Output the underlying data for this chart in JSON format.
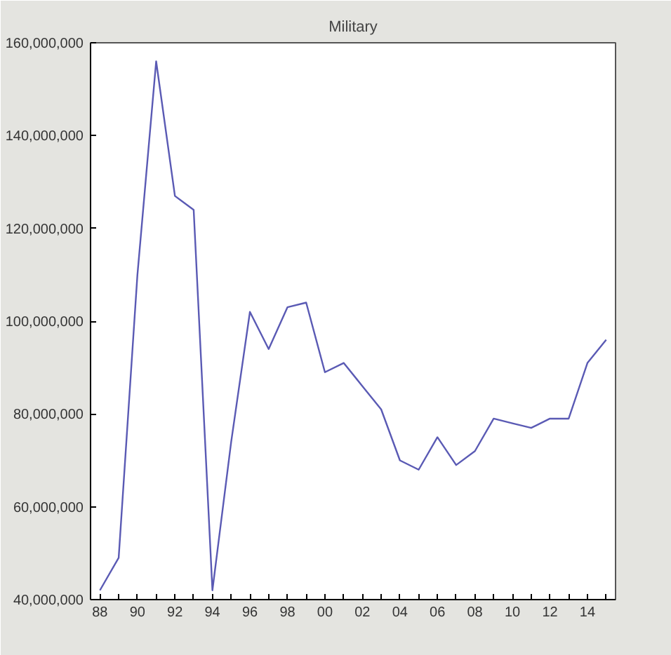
{
  "chart_data": {
    "type": "line",
    "title": "Military",
    "x": [
      1988,
      1989,
      1990,
      1991,
      1992,
      1993,
      1994,
      1995,
      1996,
      1997,
      1998,
      1999,
      2000,
      2001,
      2002,
      2003,
      2004,
      2005,
      2006,
      2007,
      2008,
      2009,
      2010,
      2011,
      2012,
      2013,
      2014,
      2015
    ],
    "series": [
      {
        "color": "#5a5ab4",
        "values": [
          42000000,
          49000000,
          110000000,
          156000000,
          127000000,
          124000000,
          42000000,
          74000000,
          102000000,
          94000000,
          103000000,
          104000000,
          89000000,
          91000000,
          86000000,
          81000000,
          70000000,
          68000000,
          75000000,
          69000000,
          72000000,
          79000000,
          78000000,
          77000000,
          79000000,
          79000000,
          91000000,
          96000000
        ]
      }
    ],
    "xlim": [
      1987.5,
      2015.5
    ],
    "xticks": [
      {
        "value": 1988,
        "label": "88"
      },
      {
        "value": 1989,
        "label": null
      },
      {
        "value": 1990,
        "label": "90"
      },
      {
        "value": 1991,
        "label": null
      },
      {
        "value": 1992,
        "label": "92"
      },
      {
        "value": 1993,
        "label": null
      },
      {
        "value": 1994,
        "label": "94"
      },
      {
        "value": 1995,
        "label": null
      },
      {
        "value": 1996,
        "label": "96"
      },
      {
        "value": 1997,
        "label": null
      },
      {
        "value": 1998,
        "label": "98"
      },
      {
        "value": 1999,
        "label": null
      },
      {
        "value": 2000,
        "label": "00"
      },
      {
        "value": 2001,
        "label": null
      },
      {
        "value": 2002,
        "label": "02"
      },
      {
        "value": 2003,
        "label": null
      },
      {
        "value": 2004,
        "label": "04"
      },
      {
        "value": 2005,
        "label": null
      },
      {
        "value": 2006,
        "label": "06"
      },
      {
        "value": 2007,
        "label": null
      },
      {
        "value": 2008,
        "label": "08"
      },
      {
        "value": 2009,
        "label": null
      },
      {
        "value": 2010,
        "label": "10"
      },
      {
        "value": 2011,
        "label": null
      },
      {
        "value": 2012,
        "label": "12"
      },
      {
        "value": 2013,
        "label": null
      },
      {
        "value": 2014,
        "label": "14"
      },
      {
        "value": 2015,
        "label": null
      }
    ],
    "ylim": [
      40000000,
      160000000
    ],
    "yticks": [
      {
        "value": 40000000,
        "label": "40,000,000"
      },
      {
        "value": 60000000,
        "label": "60,000,000"
      },
      {
        "value": 80000000,
        "label": "80,000,000"
      },
      {
        "value": 100000000,
        "label": "100,000,000"
      },
      {
        "value": 120000000,
        "label": "120,000,000"
      },
      {
        "value": 140000000,
        "label": "140,000,000"
      },
      {
        "value": 160000000,
        "label": "160,000,000"
      }
    ],
    "grid": false,
    "marker": "none",
    "line_style": "solid"
  }
}
